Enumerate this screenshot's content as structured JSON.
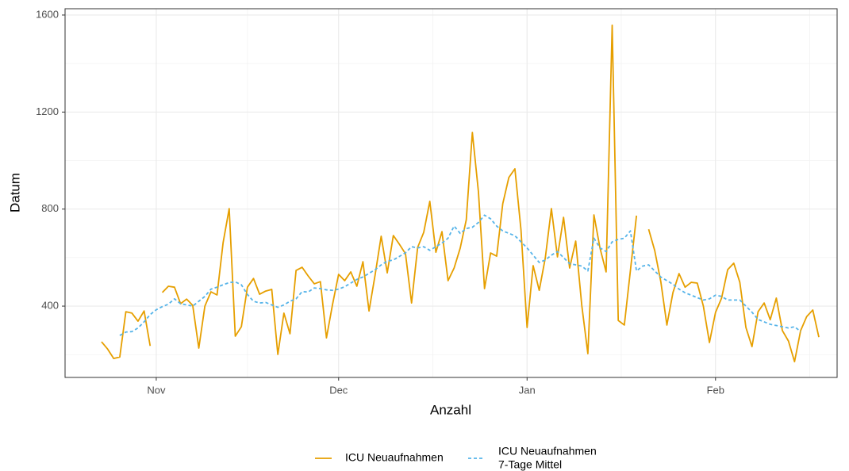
{
  "chart_data": {
    "type": "line",
    "x_label": "Anzahl",
    "y_label": "Datum",
    "x": [
      -9,
      -8,
      -7,
      -6,
      -5,
      -4,
      -3,
      -2,
      -1,
      0,
      1,
      2,
      3,
      4,
      5,
      6,
      7,
      8,
      9,
      10,
      11,
      12,
      13,
      14,
      15,
      16,
      17,
      18,
      19,
      20,
      21,
      22,
      23,
      24,
      25,
      26,
      27,
      28,
      29,
      30,
      31,
      32,
      33,
      34,
      35,
      36,
      37,
      38,
      39,
      40,
      41,
      42,
      43,
      44,
      45,
      46,
      47,
      48,
      49,
      50,
      51,
      52,
      53,
      54,
      55,
      56,
      57,
      58,
      59,
      60,
      61,
      62,
      63,
      64,
      65,
      66,
      67,
      68,
      69,
      70,
      71,
      72,
      73,
      74,
      75,
      76,
      77,
      78,
      79,
      80,
      81,
      82,
      83,
      84,
      85,
      86,
      87,
      88,
      89,
      90,
      91,
      92,
      93,
      94,
      95,
      96,
      97,
      98,
      99,
      100,
      101,
      102,
      103,
      104,
      105,
      106,
      107,
      108,
      109
    ],
    "series": [
      {
        "name": "ICU Neuaufnahmen",
        "color": "#E69F00",
        "dash": "solid",
        "values": [
          253,
          223,
          184,
          190,
          377,
          371,
          338,
          380,
          236,
          null,
          456,
          482,
          478,
          410,
          429,
          403,
          227,
          400,
          459,
          446,
          662,
          802,
          276,
          315,
          478,
          514,
          449,
          462,
          469,
          201,
          371,
          286,
          547,
          560,
          524,
          492,
          501,
          269,
          407,
          531,
          505,
          541,
          482,
          583,
          380,
          528,
          688,
          537,
          691,
          655,
          616,
          413,
          642,
          704,
          832,
          622,
          707,
          505,
          557,
          639,
          756,
          1116,
          871,
          472,
          619,
          606,
          822,
          930,
          966,
          714,
          312,
          567,
          465,
          599,
          802,
          603,
          766,
          557,
          668,
          403,
          204,
          776,
          639,
          541,
          1558,
          341,
          322,
          547,
          773,
          null,
          717,
          629,
          501,
          322,
          456,
          534,
          478,
          498,
          495,
          400,
          250,
          374,
          433,
          550,
          577,
          498,
          312,
          233,
          377,
          413,
          344,
          433,
          299,
          256,
          171,
          299,
          357,
          384,
          272
        ]
      },
      {
        "name": "ICU Neuaufnahmen\n7-Tage Mittel",
        "color": "#56B4E9",
        "dash": "dotted",
        "values": [
          null,
          null,
          null,
          279,
          293,
          295,
          310,
          335,
          365,
          385,
          398,
          408,
          430,
          410,
          405,
          400,
          420,
          440,
          470,
          478,
          488,
          497,
          500,
          488,
          448,
          420,
          413,
          415,
          405,
          395,
          405,
          420,
          430,
          460,
          458,
          475,
          472,
          467,
          465,
          470,
          480,
          495,
          510,
          520,
          535,
          550,
          570,
          585,
          590,
          605,
          620,
          645,
          640,
          645,
          630,
          645,
          660,
          680,
          730,
          700,
          720,
          725,
          745,
          775,
          760,
          730,
          710,
          700,
          690,
          665,
          640,
          610,
          580,
          590,
          610,
          625,
          600,
          575,
          570,
          565,
          545,
          680,
          640,
          625,
          665,
          675,
          680,
          710,
          545,
          565,
          570,
          545,
          520,
          505,
          490,
          470,
          455,
          445,
          435,
          425,
          430,
          445,
          440,
          425,
          425,
          425,
          400,
          375,
          345,
          335,
          325,
          320,
          315,
          310,
          315,
          295,
          null,
          null,
          null
        ]
      }
    ],
    "xlim": [
      -15,
      112
    ],
    "xticks": [
      {
        "value": 0,
        "label": "Nov"
      },
      {
        "value": 30,
        "label": "Dec"
      },
      {
        "value": 61,
        "label": "Jan"
      },
      {
        "value": 92,
        "label": "Feb"
      }
    ],
    "ylim": [
      106,
      1626
    ],
    "yticks": [
      400,
      800,
      1200,
      1600
    ],
    "grid": true,
    "minor_grid": true,
    "legend_position": "bottom"
  }
}
